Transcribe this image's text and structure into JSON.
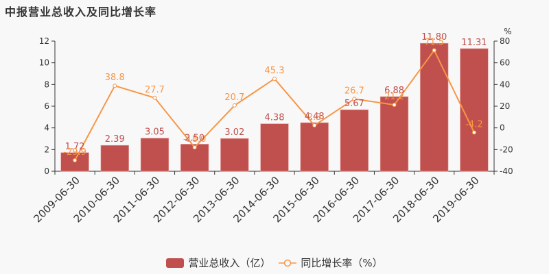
{
  "title": "中报营业总收入及同比增长率",
  "colors": {
    "bar": "#c0504d",
    "line": "#f79646",
    "bar_label": "#c0504d",
    "line_label": "#f79646",
    "axis": "#333333",
    "background": "#f8f8f8"
  },
  "legend": {
    "bar_label": "营业总收入（亿）",
    "line_label": "同比增长率（%）"
  },
  "axes": {
    "right_unit": "%"
  },
  "chart_data": {
    "type": "bar",
    "title": "中报营业总收入及同比增长率",
    "categories": [
      "2009-06-30",
      "2010-06-30",
      "2011-06-30",
      "2012-06-30",
      "2013-06-30",
      "2014-06-30",
      "2015-06-30",
      "2016-06-30",
      "2017-06-30",
      "2018-06-30",
      "2019-06-30"
    ],
    "series": [
      {
        "name": "营业总收入（亿）",
        "type": "bar",
        "axis": "left",
        "values": [
          1.72,
          2.39,
          3.05,
          2.5,
          3.02,
          4.38,
          4.48,
          5.67,
          6.88,
          11.8,
          11.31
        ]
      },
      {
        "name": "同比增长率（%）",
        "type": "line",
        "axis": "right",
        "values": [
          -29.9,
          38.8,
          27.7,
          -18.0,
          20.7,
          45.3,
          2.3,
          26.7,
          21.2,
          71.5,
          -4.2
        ]
      }
    ],
    "left_axis": {
      "ylim": [
        0,
        12
      ],
      "ticks": [
        0,
        2,
        4,
        6,
        8,
        10,
        12
      ]
    },
    "right_axis": {
      "ylim": [
        -40,
        80
      ],
      "ticks": [
        -40,
        -20,
        0,
        20,
        40,
        60,
        80
      ],
      "label": "%"
    },
    "xlabel": "",
    "ylabel": "",
    "legend_position": "bottom",
    "grid": false
  }
}
